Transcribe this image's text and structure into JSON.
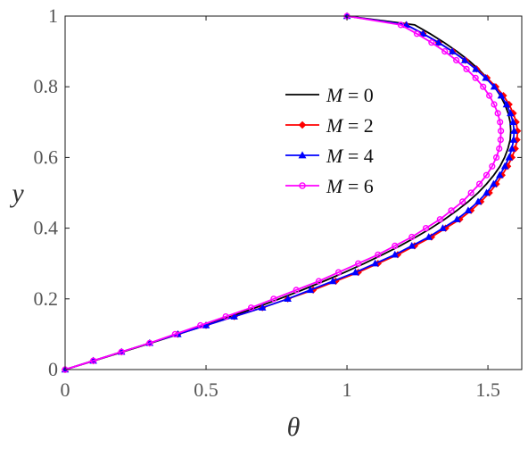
{
  "chart_data": {
    "type": "line",
    "xlabel": "θ",
    "ylabel": "y",
    "xlim": [
      0,
      1.62
    ],
    "ylim": [
      0,
      1
    ],
    "xticks": [
      0,
      0.5,
      1,
      1.5
    ],
    "yticks": [
      0,
      0.2,
      0.4,
      0.6,
      0.8,
      1
    ],
    "xtick_labels": [
      "0",
      "0.5",
      "1",
      "1.5"
    ],
    "ytick_labels": [
      "0",
      "0.2",
      "0.4",
      "0.6",
      "0.8",
      "1"
    ],
    "grid": false,
    "legend_position": "center-right",
    "series": [
      {
        "name": "M = 0",
        "legend_var": "M",
        "legend_value": "= 0",
        "color": "#000000",
        "marker": "none",
        "points": [
          [
            0,
            0
          ],
          [
            0.103,
            0.025
          ],
          [
            0.205,
            0.05
          ],
          [
            0.305,
            0.075
          ],
          [
            0.402,
            0.1
          ],
          [
            0.496,
            0.125
          ],
          [
            0.588,
            0.15
          ],
          [
            0.676,
            0.175
          ],
          [
            0.76,
            0.2
          ],
          [
            0.841,
            0.225
          ],
          [
            0.918,
            0.25
          ],
          [
            0.992,
            0.275
          ],
          [
            1.061,
            0.3
          ],
          [
            1.126,
            0.325
          ],
          [
            1.188,
            0.35
          ],
          [
            1.245,
            0.375
          ],
          [
            1.298,
            0.4
          ],
          [
            1.346,
            0.425
          ],
          [
            1.39,
            0.45
          ],
          [
            1.43,
            0.475
          ],
          [
            1.465,
            0.5
          ],
          [
            1.495,
            0.525
          ],
          [
            1.521,
            0.55
          ],
          [
            1.543,
            0.575
          ],
          [
            1.559,
            0.6
          ],
          [
            1.571,
            0.625
          ],
          [
            1.579,
            0.65
          ],
          [
            1.581,
            0.675
          ],
          [
            1.579,
            0.7
          ],
          [
            1.572,
            0.725
          ],
          [
            1.56,
            0.75
          ],
          [
            1.544,
            0.775
          ],
          [
            1.523,
            0.8
          ],
          [
            1.497,
            0.825
          ],
          [
            1.466,
            0.85
          ],
          [
            1.431,
            0.875
          ],
          [
            1.39,
            0.9
          ],
          [
            1.345,
            0.925
          ],
          [
            1.295,
            0.95
          ],
          [
            1.24,
            0.975
          ],
          [
            1,
            1
          ]
        ]
      },
      {
        "name": "M = 2",
        "legend_var": "M",
        "legend_value": "= 2",
        "color": "#ff0000",
        "marker": "diamond",
        "points": [
          [
            0,
            0
          ],
          [
            0.1,
            0.025
          ],
          [
            0.2,
            0.05
          ],
          [
            0.3,
            0.075
          ],
          [
            0.4,
            0.1
          ],
          [
            0.5,
            0.125
          ],
          [
            0.6,
            0.15
          ],
          [
            0.7,
            0.175
          ],
          [
            0.79,
            0.2
          ],
          [
            0.88,
            0.225
          ],
          [
            0.96,
            0.25
          ],
          [
            1.04,
            0.275
          ],
          [
            1.11,
            0.3
          ],
          [
            1.18,
            0.325
          ],
          [
            1.24,
            0.35
          ],
          [
            1.3,
            0.375
          ],
          [
            1.35,
            0.4
          ],
          [
            1.4,
            0.425
          ],
          [
            1.44,
            0.45
          ],
          [
            1.475,
            0.475
          ],
          [
            1.505,
            0.5
          ],
          [
            1.53,
            0.525
          ],
          [
            1.55,
            0.55
          ],
          [
            1.57,
            0.575
          ],
          [
            1.585,
            0.6
          ],
          [
            1.597,
            0.625
          ],
          [
            1.603,
            0.65
          ],
          [
            1.605,
            0.675
          ],
          [
            1.6,
            0.7
          ],
          [
            1.59,
            0.725
          ],
          [
            1.575,
            0.75
          ],
          [
            1.555,
            0.775
          ],
          [
            1.528,
            0.8
          ],
          [
            1.497,
            0.825
          ],
          [
            1.46,
            0.85
          ],
          [
            1.42,
            0.875
          ],
          [
            1.375,
            0.9
          ],
          [
            1.325,
            0.925
          ],
          [
            1.27,
            0.95
          ],
          [
            1.21,
            0.975
          ],
          [
            1,
            1
          ]
        ]
      },
      {
        "name": "M = 4",
        "legend_var": "M",
        "legend_value": "= 4",
        "color": "#0000ff",
        "marker": "triangle",
        "points": [
          [
            0,
            0
          ],
          [
            0.1,
            0.025
          ],
          [
            0.2,
            0.05
          ],
          [
            0.3,
            0.075
          ],
          [
            0.4,
            0.1
          ],
          [
            0.5,
            0.125
          ],
          [
            0.6,
            0.15
          ],
          [
            0.7,
            0.175
          ],
          [
            0.79,
            0.2
          ],
          [
            0.87,
            0.225
          ],
          [
            0.95,
            0.25
          ],
          [
            1.03,
            0.275
          ],
          [
            1.1,
            0.3
          ],
          [
            1.17,
            0.325
          ],
          [
            1.23,
            0.35
          ],
          [
            1.29,
            0.375
          ],
          [
            1.34,
            0.4
          ],
          [
            1.39,
            0.425
          ],
          [
            1.43,
            0.45
          ],
          [
            1.465,
            0.475
          ],
          [
            1.495,
            0.5
          ],
          [
            1.52,
            0.525
          ],
          [
            1.542,
            0.55
          ],
          [
            1.56,
            0.575
          ],
          [
            1.575,
            0.6
          ],
          [
            1.585,
            0.625
          ],
          [
            1.591,
            0.65
          ],
          [
            1.593,
            0.675
          ],
          [
            1.589,
            0.7
          ],
          [
            1.58,
            0.725
          ],
          [
            1.566,
            0.75
          ],
          [
            1.547,
            0.775
          ],
          [
            1.522,
            0.8
          ],
          [
            1.492,
            0.825
          ],
          [
            1.457,
            0.85
          ],
          [
            1.418,
            0.875
          ],
          [
            1.374,
            0.9
          ],
          [
            1.325,
            0.925
          ],
          [
            1.27,
            0.95
          ],
          [
            1.211,
            0.975
          ],
          [
            1,
            1
          ]
        ]
      },
      {
        "name": "M = 6",
        "legend_var": "M",
        "legend_value": "= 6",
        "color": "#ff00ff",
        "marker": "circle",
        "points": [
          [
            0,
            0
          ],
          [
            0.1,
            0.025
          ],
          [
            0.2,
            0.05
          ],
          [
            0.3,
            0.075
          ],
          [
            0.39,
            0.1
          ],
          [
            0.48,
            0.125
          ],
          [
            0.57,
            0.15
          ],
          [
            0.66,
            0.175
          ],
          [
            0.74,
            0.2
          ],
          [
            0.82,
            0.225
          ],
          [
            0.9,
            0.25
          ],
          [
            0.97,
            0.275
          ],
          [
            1.04,
            0.3
          ],
          [
            1.11,
            0.325
          ],
          [
            1.17,
            0.35
          ],
          [
            1.23,
            0.375
          ],
          [
            1.28,
            0.4
          ],
          [
            1.33,
            0.425
          ],
          [
            1.37,
            0.45
          ],
          [
            1.41,
            0.475
          ],
          [
            1.44,
            0.5
          ],
          [
            1.47,
            0.525
          ],
          [
            1.495,
            0.55
          ],
          [
            1.515,
            0.575
          ],
          [
            1.53,
            0.6
          ],
          [
            1.54,
            0.625
          ],
          [
            1.545,
            0.65
          ],
          [
            1.546,
            0.675
          ],
          [
            1.543,
            0.7
          ],
          [
            1.535,
            0.725
          ],
          [
            1.522,
            0.75
          ],
          [
            1.505,
            0.775
          ],
          [
            1.483,
            0.8
          ],
          [
            1.456,
            0.825
          ],
          [
            1.424,
            0.85
          ],
          [
            1.388,
            0.875
          ],
          [
            1.347,
            0.9
          ],
          [
            1.3,
            0.925
          ],
          [
            1.248,
            0.95
          ],
          [
            1.191,
            0.975
          ],
          [
            1,
            1
          ]
        ]
      }
    ]
  }
}
